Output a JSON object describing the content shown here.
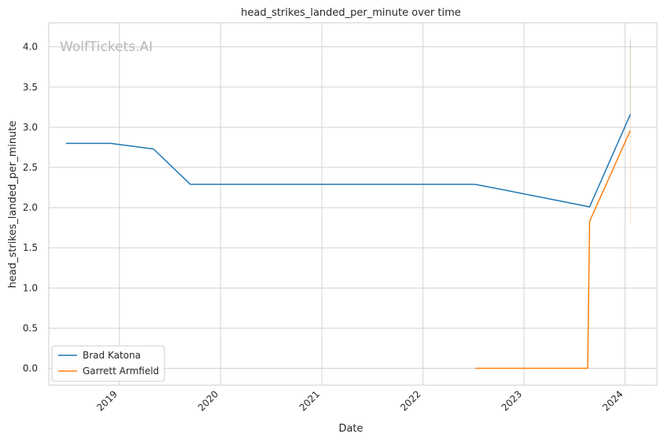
{
  "chart_data": {
    "type": "line",
    "title": "head_strikes_landed_per_minute over time",
    "xlabel": "Date",
    "ylabel": "head_strikes_landed_per_minute",
    "watermark": "WolfTickets.AI",
    "x_ticks": [
      "2019",
      "2020",
      "2021",
      "2022",
      "2023",
      "2024"
    ],
    "y_ticks": [
      "0.0",
      "0.5",
      "1.0",
      "1.5",
      "2.0",
      "2.5",
      "3.0",
      "3.5",
      "4.0"
    ],
    "xlim": [
      "2018-04-21",
      "2024-04-25"
    ],
    "ylim": [
      -0.21,
      4.3
    ],
    "grid": true,
    "legend_position": "lower-left",
    "series": [
      {
        "name": "Brad Katona",
        "color": "#1f77b4",
        "x": [
          "2018-06-22",
          "2018-11-30",
          "2019-05-04",
          "2019-09-14",
          "2022-07-09",
          "2023-08-26",
          "2024-01-20"
        ],
        "y": [
          2.8,
          2.8,
          2.73,
          2.29,
          2.29,
          2.01,
          3.16
        ]
      },
      {
        "name": "Garrett Armfield",
        "color": "#ff7f0e",
        "x": [
          "2022-07-09",
          "2023-08-19",
          "2023-08-26",
          "2024-01-20"
        ],
        "y": [
          0.0,
          0.0,
          1.83,
          2.96
        ]
      }
    ],
    "error_bars": [
      {
        "color": "#1f77b4",
        "x": "2024-01-20",
        "low": 3.1,
        "high": 4.1
      },
      {
        "color": "#ff7f0e",
        "x": "2024-01-20",
        "low": 1.8,
        "high": 4.08
      }
    ]
  }
}
